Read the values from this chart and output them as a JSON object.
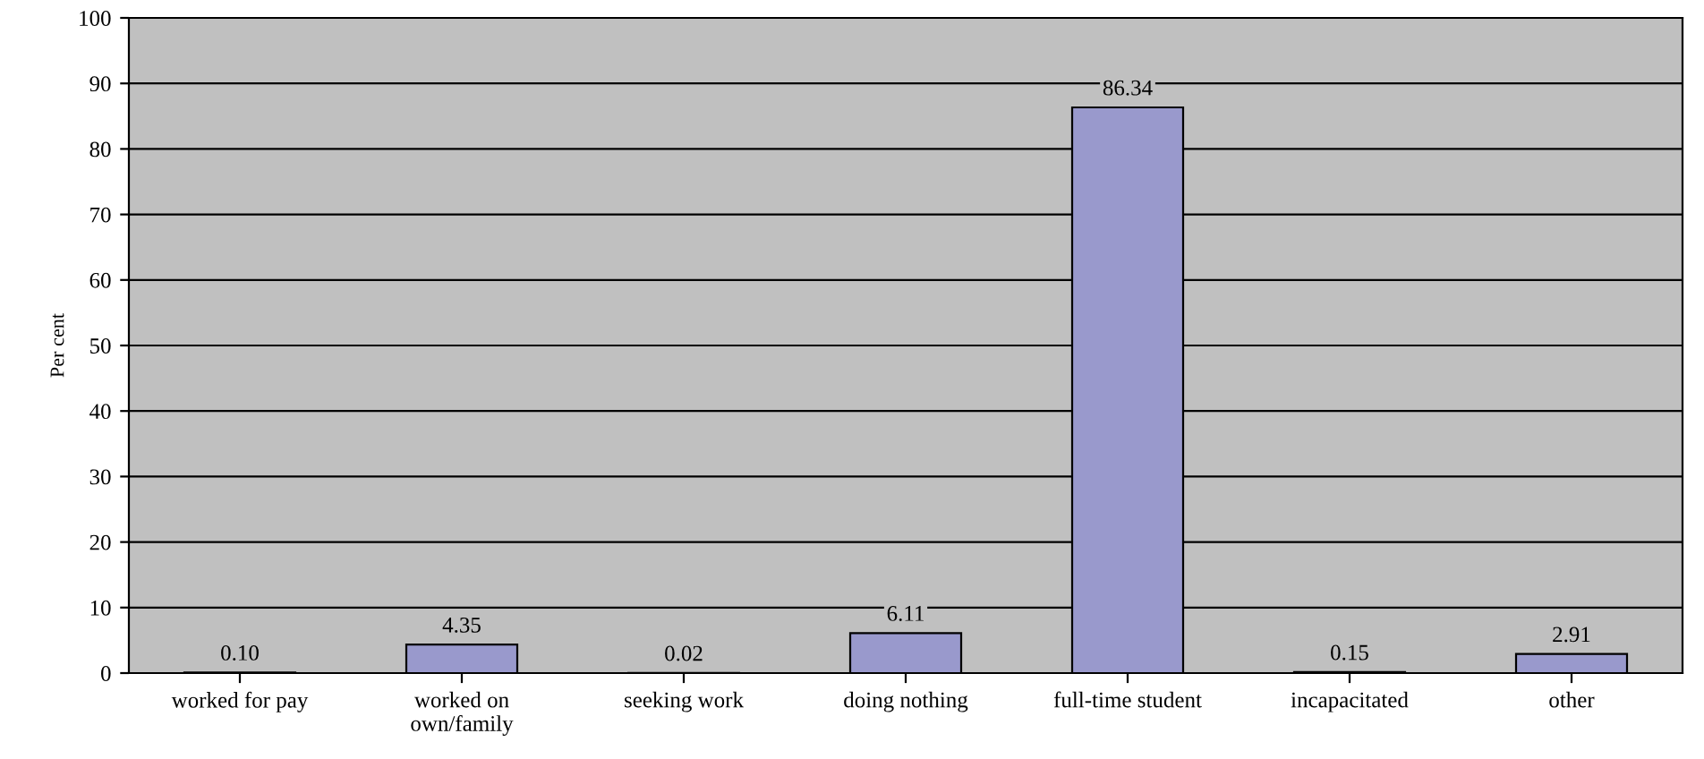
{
  "chart_data": {
    "type": "bar",
    "ylabel": "Per cent",
    "categories": [
      "worked for pay",
      "worked on\nown/family",
      "seeking work",
      "doing nothing",
      "full-time student",
      "incapacitated",
      "other"
    ],
    "values": [
      0.1,
      4.35,
      0.02,
      6.11,
      86.34,
      0.15,
      2.91
    ],
    "value_labels": [
      "0.10",
      "4.35",
      "0.02",
      "6.11",
      "86.34",
      "0.15",
      "2.91"
    ],
    "color": "#9999cc",
    "ylim": [
      0,
      100
    ],
    "yticks": [
      0,
      10,
      20,
      30,
      40,
      50,
      60,
      70,
      80,
      90,
      100
    ],
    "grid": "y"
  }
}
